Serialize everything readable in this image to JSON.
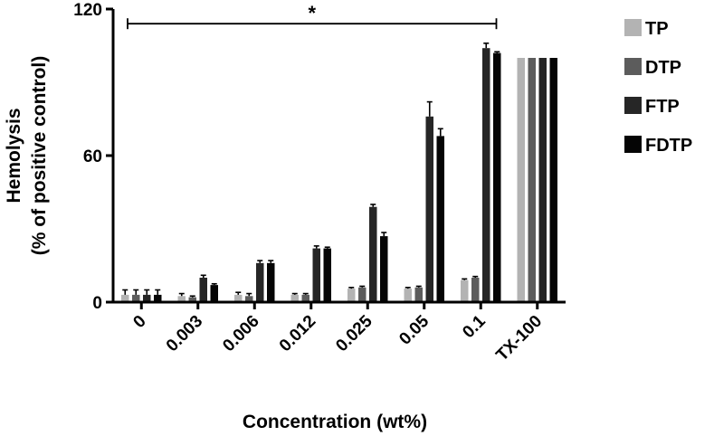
{
  "chart_data": {
    "type": "bar",
    "title": "",
    "xlabel": "Concentration (wt%)",
    "ylabel": "Hemolysis",
    "ylabel_sub": "(% of positive control)",
    "ylim": [
      0,
      120
    ],
    "yticks": [
      "0",
      "60",
      "120"
    ],
    "grid": false,
    "legend_position": "top-right",
    "categories": [
      "0",
      "0.003",
      "0.006",
      "0.012",
      "0.025",
      "0.05",
      "0.1",
      "TX-100"
    ],
    "series": [
      {
        "name": "TP",
        "color": "#b3b3b3",
        "values": [
          3,
          2.5,
          3,
          3,
          5.5,
          5.5,
          9,
          100
        ],
        "errors": [
          2,
          1,
          1,
          0.5,
          0.5,
          0.5,
          0.5,
          0
        ]
      },
      {
        "name": "DTP",
        "color": "#5c5c5c",
        "values": [
          3,
          2,
          2.5,
          3,
          6,
          6,
          10,
          100
        ],
        "errors": [
          2,
          0.5,
          1,
          0.5,
          0.5,
          0.5,
          0.5,
          0
        ]
      },
      {
        "name": "FTP",
        "color": "#262626",
        "values": [
          3,
          10,
          16,
          22,
          39,
          76,
          104,
          100
        ],
        "errors": [
          2,
          1,
          1,
          1,
          1,
          6,
          2,
          0
        ]
      },
      {
        "name": "FDTP",
        "color": "#050505",
        "values": [
          3,
          7,
          16,
          22,
          27,
          68,
          102,
          100
        ],
        "errors": [
          2,
          0.5,
          1,
          0.5,
          1.5,
          3,
          0.5,
          0
        ]
      }
    ],
    "annotations": [
      {
        "type": "significance-bracket",
        "label": "*",
        "from_category": "0",
        "to_category": "0.1",
        "y": 114
      }
    ]
  }
}
